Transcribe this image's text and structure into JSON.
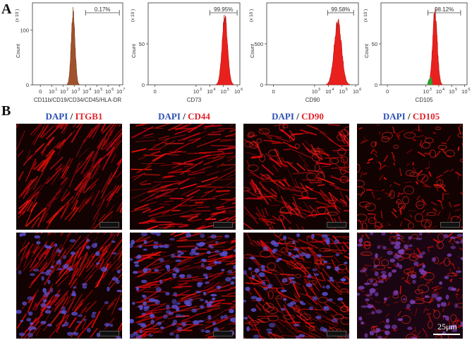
{
  "panel_labels": {
    "a": "A",
    "b": "B"
  },
  "histogram_axis": {
    "y_title": "Count"
  },
  "colors": {
    "fill": "#e8201e",
    "fill_dark": "#b81a14",
    "brown": "#a0522d",
    "dapi_blue": "#2b4fb3",
    "marker_red": "#e0222a",
    "green_gate": "#2e9e2e"
  },
  "chart_data": [
    {
      "type": "area",
      "xlabel": "CD11b/CD19/CD34/CD45/HLA-DR",
      "ylabel": "Count",
      "x_ticks": [
        {
          "text": "0",
          "v": 0
        },
        {
          "text": "10",
          "v": 1
        },
        {
          "text": "10",
          "v": 2
        },
        {
          "text": "10",
          "v": 3
        },
        {
          "text": "10",
          "v": 4
        },
        {
          "text": "10",
          "v": 5
        },
        {
          "text": "10",
          "v": 6
        },
        {
          "text": "10",
          "v": 7
        }
      ],
      "x_tick_exps": [
        "",
        "1",
        "2",
        "3",
        "4",
        "5",
        "6",
        "7"
      ],
      "y_ticks": [
        0,
        100
      ],
      "ylim": [
        0,
        150
      ],
      "xlim": [
        -0.7,
        7.3
      ],
      "peak": {
        "center": 2.9,
        "width": 0.17,
        "height": 130,
        "color": "brown"
      },
      "gate": {
        "label": "0.17%",
        "from": 4,
        "to": 7
      }
    },
    {
      "type": "area",
      "xlabel": "CD73",
      "ylabel": "Count",
      "x_ticks": [
        {
          "text": "0",
          "v": 0
        },
        {
          "text": "10",
          "v": 3
        },
        {
          "text": "10",
          "v": 4
        },
        {
          "text": "10",
          "v": 5
        },
        {
          "text": "10",
          "v": 6
        }
      ],
      "x_tick_exps": [
        "",
        "3",
        "4",
        "5",
        "6"
      ],
      "y_ticks": [
        0,
        50
      ],
      "ylim": [
        0,
        100
      ],
      "xlim": [
        -0.5,
        6.2
      ],
      "peak": {
        "center": 5.1,
        "width": 0.2,
        "height": 82,
        "color": "red"
      },
      "gate": {
        "label": "99.95%",
        "from": 4,
        "to": 6
      }
    },
    {
      "type": "area",
      "xlabel": "CD90",
      "ylabel": "Count",
      "x_ticks": [
        {
          "text": "0",
          "v": 0
        },
        {
          "text": "10",
          "v": 3
        },
        {
          "text": "10",
          "v": 4
        },
        {
          "text": "10",
          "v": 5
        },
        {
          "text": "10",
          "v": 6
        }
      ],
      "x_tick_exps": [
        "",
        "3",
        "4",
        "5",
        "6"
      ],
      "y_ticks": [
        0,
        500
      ],
      "ylim": [
        0,
        1000
      ],
      "xlim": [
        -0.5,
        6.2
      ],
      "peak": {
        "center": 4.7,
        "width": 0.27,
        "height": 760,
        "color": "red"
      },
      "gate": {
        "label": "99.58%",
        "from": 3.95,
        "to": 5.85
      }
    },
    {
      "type": "area",
      "xlabel": "CD105",
      "ylabel": "Count",
      "x_ticks": [
        {
          "text": "0",
          "v": 0
        },
        {
          "text": "10",
          "v": 3
        },
        {
          "text": "10",
          "v": 4
        },
        {
          "text": "10",
          "v": 5
        },
        {
          "text": "10",
          "v": 6
        }
      ],
      "x_tick_exps": [
        "",
        "3",
        "4",
        "5",
        "6"
      ],
      "y_ticks": [
        0,
        50
      ],
      "ylim": [
        0,
        100
      ],
      "xlim": [
        -0.5,
        6.2
      ],
      "peak": {
        "center": 3.7,
        "width": 0.18,
        "height": 88,
        "color": "red"
      },
      "gate": {
        "label": "98.12%",
        "from": 3.15,
        "to": 5.7
      }
    }
  ],
  "micrographs": [
    {
      "dapi": "DAPI",
      "sep": "/",
      "marker": "ITGB1"
    },
    {
      "dapi": "DAPI",
      "sep": "/",
      "marker": "CD44"
    },
    {
      "dapi": "DAPI",
      "sep": "/",
      "marker": "CD90"
    },
    {
      "dapi": "DAPI",
      "sep": "/",
      "marker": "CD105"
    }
  ],
  "scale_bar": {
    "label": "25μm"
  }
}
